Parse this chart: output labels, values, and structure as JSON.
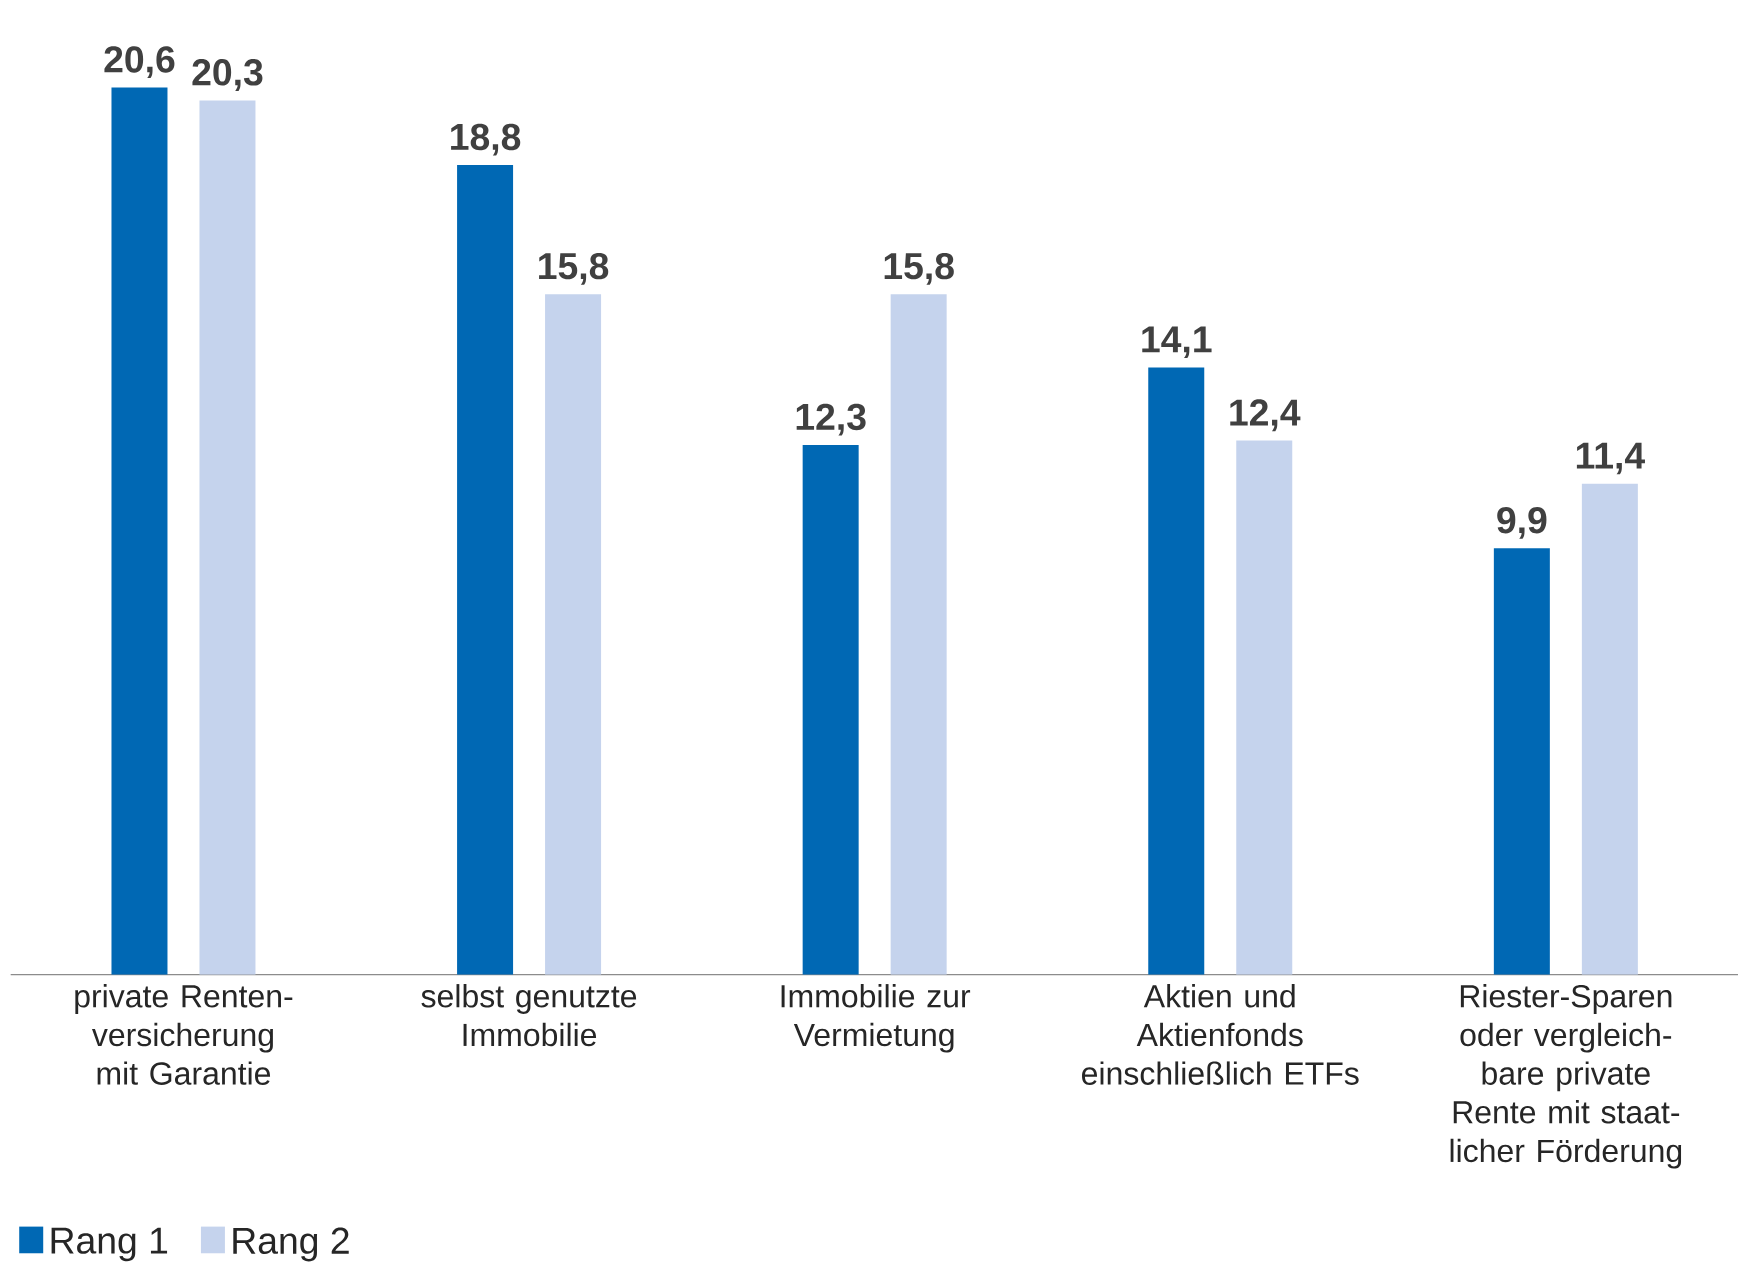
{
  "chart_data": {
    "type": "bar",
    "categories": [
      "private Renten-versicherung mit Garantie",
      "selbst genutzte Immobilie",
      "Immobilie zur Vermietung",
      "Aktien und Aktienfonds einschließlich ETFs",
      "Riester-Sparen oder vergleich-bare private Rente mit staat-licher Förderung"
    ],
    "series": [
      {
        "name": "Rang 1",
        "color": "#0068b4",
        "values": [
          20.6,
          18.8,
          12.3,
          14.1,
          9.9
        ],
        "value_labels": [
          "20,6",
          "18,8",
          "12,3",
          "14,1",
          "9,9"
        ]
      },
      {
        "name": "Rang 2",
        "color": "#c5d3ed",
        "values": [
          20.3,
          15.8,
          15.8,
          12.4,
          11.4
        ],
        "value_labels": [
          "20,3",
          "15,8",
          "15,8",
          "12,4",
          "11,4"
        ]
      }
    ],
    "legend": "bottom left"
  }
}
